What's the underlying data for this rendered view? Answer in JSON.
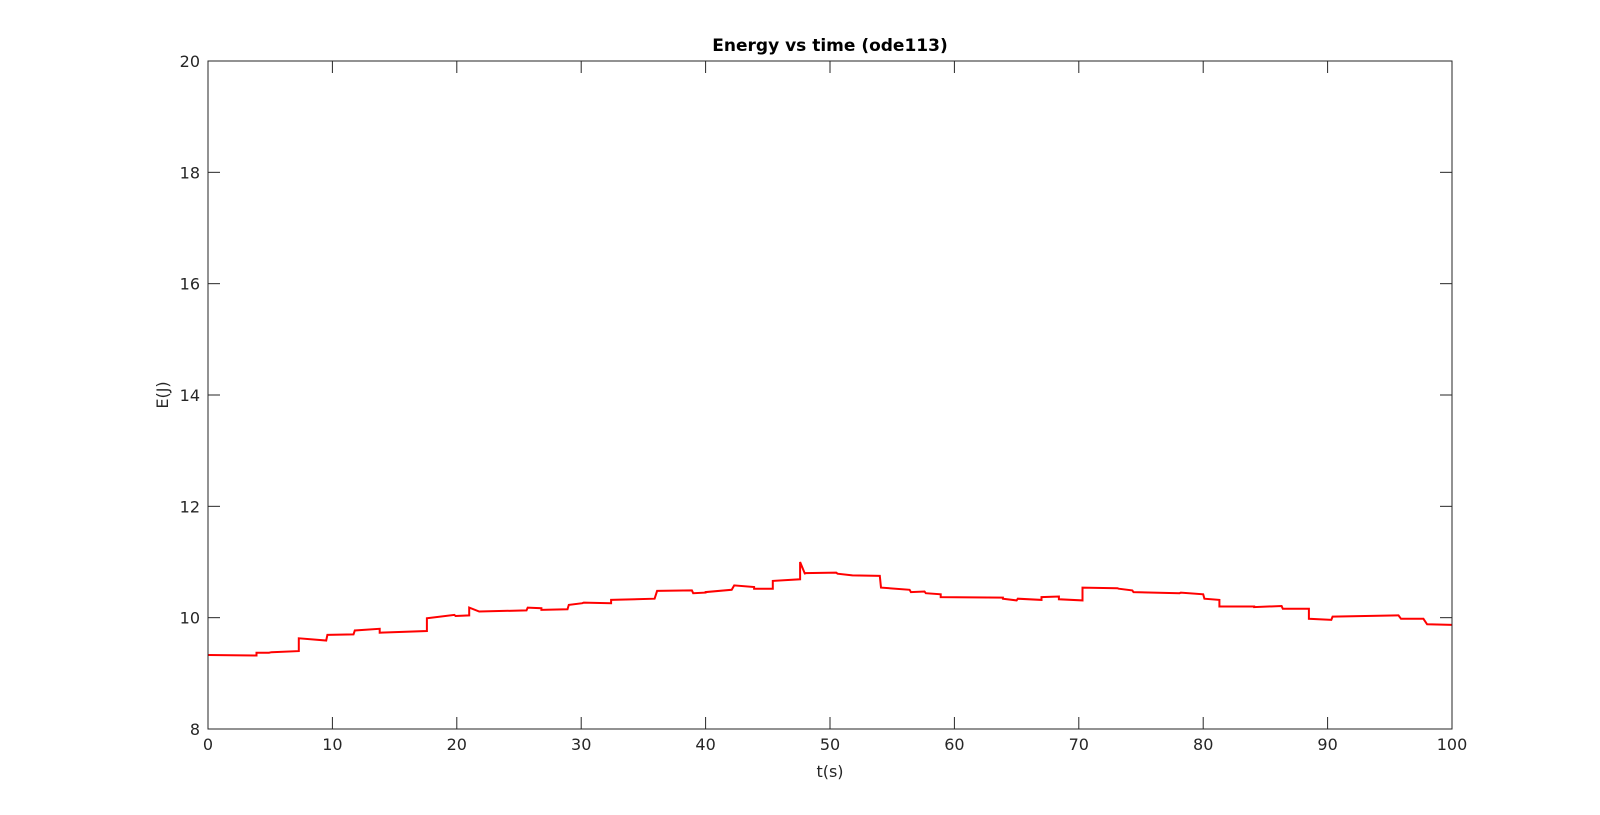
{
  "chart_data": {
    "type": "line",
    "title": "Energy vs time (ode113)",
    "xlabel": "t(s)",
    "ylabel": "E(J)",
    "xlim": [
      0,
      100
    ],
    "ylim": [
      8,
      20
    ],
    "xticks": [
      0,
      10,
      20,
      30,
      40,
      50,
      60,
      70,
      80,
      90,
      100
    ],
    "yticks": [
      8,
      10,
      12,
      14,
      16,
      18,
      20
    ],
    "grid": false,
    "legend": "none",
    "series": [
      {
        "color": "#ff0000",
        "x": [
          0,
          3.9,
          3.9,
          4.9,
          5.1,
          7.3,
          7.3,
          9.5,
          9.6,
          11.7,
          11.8,
          13.8,
          13.8,
          17.6,
          17.6,
          19.8,
          19.9,
          21.0,
          21.0,
          21.8,
          21.8,
          25.6,
          25.7,
          26.8,
          26.8,
          28.9,
          29.0,
          30.1,
          30.2,
          32.4,
          32.4,
          35.9,
          36.1,
          38.9,
          39.0,
          40.0,
          40.0,
          42.1,
          42.3,
          43.9,
          43.9,
          45.4,
          45.4,
          47.6,
          47.6,
          48.0,
          48.0,
          50.5,
          50.6,
          51.8,
          51.8,
          54.0,
          54.1,
          56.4,
          56.5,
          57.6,
          57.7,
          58.9,
          58.9,
          63.9,
          63.9,
          65.0,
          65.1,
          67.0,
          67.0,
          68.4,
          68.4,
          70.3,
          70.3,
          73.1,
          73.2,
          74.3,
          74.4,
          78.1,
          78.2,
          80.0,
          80.1,
          81.3,
          81.3,
          84.1,
          84.1,
          86.3,
          86.4,
          88.5,
          88.5,
          90.3,
          90.4,
          95.7,
          95.9,
          97.7,
          98.0,
          100
        ]
      }
    ],
    "y_values_note_removed": true,
    "y": [
      9.33,
      9.32,
      9.37,
      9.37,
      9.38,
      9.4,
      9.63,
      9.59,
      9.69,
      9.7,
      9.77,
      9.8,
      9.73,
      9.76,
      9.99,
      10.05,
      10.03,
      10.04,
      10.18,
      10.11,
      10.11,
      10.13,
      10.18,
      10.17,
      10.14,
      10.15,
      10.23,
      10.26,
      10.27,
      10.26,
      10.32,
      10.34,
      10.48,
      10.49,
      10.44,
      10.45,
      10.46,
      10.5,
      10.58,
      10.55,
      10.52,
      10.52,
      10.66,
      10.69,
      11.0,
      10.78,
      10.8,
      10.81,
      10.79,
      10.76,
      10.76,
      10.75,
      10.54,
      10.5,
      10.46,
      10.47,
      10.44,
      10.42,
      10.37,
      10.36,
      10.34,
      10.31,
      10.34,
      10.32,
      10.37,
      10.38,
      10.33,
      10.31,
      10.54,
      10.53,
      10.52,
      10.49,
      10.46,
      10.44,
      10.45,
      10.42,
      10.34,
      10.32,
      10.2,
      10.2,
      10.19,
      10.21,
      10.16,
      10.16,
      9.98,
      9.96,
      10.02,
      10.04,
      9.98,
      9.98,
      9.88,
      9.87
    ]
  }
}
